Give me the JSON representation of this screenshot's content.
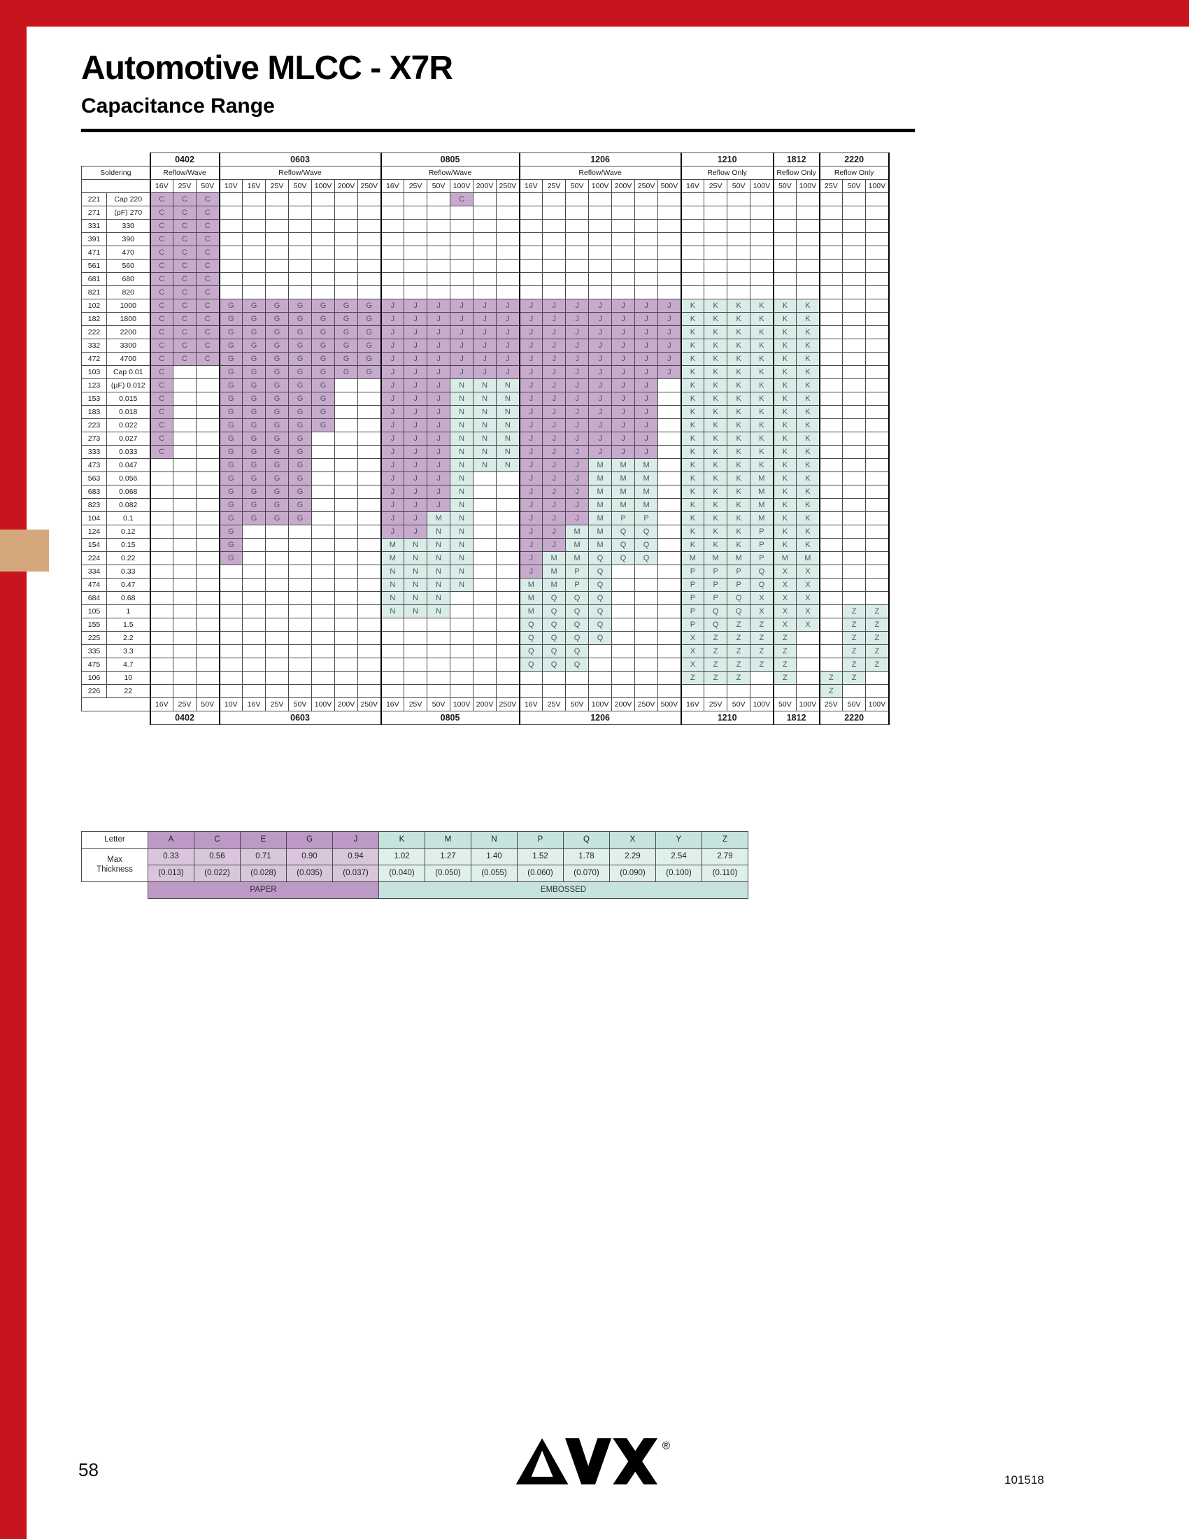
{
  "page": {
    "title": "Automotive MLCC - X7R",
    "subtitle": "Capacitance Range",
    "page_number": "58",
    "doc_code": "101518",
    "brand": "AVX",
    "registered": "®"
  },
  "colors": {
    "accent_red": "#c8151d",
    "tab_tan": "#d4a87c",
    "paper_cell": "#c8aacd",
    "embossed_cell": "#d9ece8",
    "paper_strong": "#bd99c6",
    "paper_light": "#d9c6dc",
    "embossed_strong": "#c6e3dd",
    "embossed_light": "#dff0ec"
  },
  "table": {
    "soldering_label": "Soldering",
    "sizes": [
      {
        "name": "0402",
        "soldering": "Reflow/Wave",
        "voltages": [
          "16V",
          "25V",
          "50V"
        ]
      },
      {
        "name": "0603",
        "soldering": "Reflow/Wave",
        "voltages": [
          "10V",
          "16V",
          "25V",
          "50V",
          "100V",
          "200V",
          "250V"
        ]
      },
      {
        "name": "0805",
        "soldering": "Reflow/Wave",
        "voltages": [
          "16V",
          "25V",
          "50V",
          "100V",
          "200V",
          "250V"
        ]
      },
      {
        "name": "1206",
        "soldering": "Reflow/Wave",
        "voltages": [
          "16V",
          "25V",
          "50V",
          "100V",
          "200V",
          "250V",
          "500V"
        ]
      },
      {
        "name": "1210",
        "soldering": "Reflow Only",
        "voltages": [
          "16V",
          "25V",
          "50V",
          "100V"
        ]
      },
      {
        "name": "1812",
        "soldering": "Reflow Only",
        "voltages": [
          "50V",
          "100V"
        ]
      },
      {
        "name": "2220",
        "soldering": "Reflow Only",
        "voltages": [
          "25V",
          "50V",
          "100V"
        ]
      }
    ],
    "rows": [
      {
        "code": "221",
        "label": "Cap 220",
        "cells": "CCC|-------|---C--|-------|----|--|---"
      },
      {
        "code": "271",
        "label": "(pF) 270",
        "cells": "CCC|-------|------|-------|----|--|---"
      },
      {
        "code": "331",
        "label": "330",
        "cells": "CCC|-------|------|-------|----|--|---"
      },
      {
        "code": "391",
        "label": "390",
        "cells": "CCC|-------|------|-------|----|--|---"
      },
      {
        "code": "471",
        "label": "470",
        "cells": "CCC|-------|------|-------|----|--|---"
      },
      {
        "code": "561",
        "label": "560",
        "cells": "CCC|-------|------|-------|----|--|---"
      },
      {
        "code": "681",
        "label": "680",
        "cells": "CCC|-------|------|-------|----|--|---"
      },
      {
        "code": "821",
        "label": "820",
        "cells": "CCC|-------|------|-------|----|--|---"
      },
      {
        "code": "102",
        "label": "1000",
        "cells": "CCC|GGGGGGG|JJJJJJ|JJJJJJJ|KKKK|KK|---"
      },
      {
        "code": "182",
        "label": "1800",
        "cells": "CCC|GGGGGGG|JJJJJJ|JJJJJJJ|KKKK|KK|---"
      },
      {
        "code": "222",
        "label": "2200",
        "cells": "CCC|GGGGGGG|JJJJJJ|JJJJJJJ|KKKK|KK|---"
      },
      {
        "code": "332",
        "label": "3300",
        "cells": "CCC|GGGGGGG|JJJJJJ|JJJJJJJ|KKKK|KK|---"
      },
      {
        "code": "472",
        "label": "4700",
        "cells": "CCC|GGGGGGG|JJJJJJ|JJJJJJJ|KKKK|KK|---"
      },
      {
        "code": "103",
        "label": "Cap 0.01",
        "cells": "C--|GGGGGGG|JJJJJJ|JJJJJJJ|KKKK|KK|---"
      },
      {
        "code": "123",
        "label": "(µF) 0.012",
        "cells": "C--|GGGGG--|JJJNNN|JJJJJJ-|KKKK|KK|---"
      },
      {
        "code": "153",
        "label": "0.015",
        "cells": "C--|GGGGG--|JJJNNN|JJJJJJ-|KKKK|KK|---"
      },
      {
        "code": "183",
        "label": "0.018",
        "cells": "C--|GGGGG--|JJJNNN|JJJJJJ-|KKKK|KK|---"
      },
      {
        "code": "223",
        "label": "0.022",
        "cells": "C--|GGGGG--|JJJNNN|JJJJJJ-|KKKK|KK|---"
      },
      {
        "code": "273",
        "label": "0.027",
        "cells": "C--|GGGG---|JJJNNN|JJJJJJ-|KKKK|KK|---"
      },
      {
        "code": "333",
        "label": "0.033",
        "cells": "C--|GGGG---|JJJNNN|JJJJJJ-|KKKK|KK|---"
      },
      {
        "code": "473",
        "label": "0.047",
        "cells": "---|GGGG---|JJJNNN|JJJMMM-|KKKK|KK|---"
      },
      {
        "code": "563",
        "label": "0.056",
        "cells": "---|GGGG---|JJJN--|JJJMMM-|KKKM|KK|---"
      },
      {
        "code": "683",
        "label": "0.068",
        "cells": "---|GGGG---|JJJN--|JJJMMM-|KKKM|KK|---"
      },
      {
        "code": "823",
        "label": "0.082",
        "cells": "---|GGGG---|JJJN--|JJJMMM-|KKKM|KK|---"
      },
      {
        "code": "104",
        "label": "0.1",
        "cells": "---|GGGG---|JJMN--|JJJMPP-|KKKM|KK|---"
      },
      {
        "code": "124",
        "label": "0.12",
        "cells": "---|G------|JJNN--|JJMMQQ-|KKKP|KK|---"
      },
      {
        "code": "154",
        "label": "0.15",
        "cells": "---|G------|MNNN--|JJMMQQ-|KKKP|KK|---"
      },
      {
        "code": "224",
        "label": "0.22",
        "cells": "---|G------|MNNN--|JMMQQQ-|MMMP|MM|---"
      },
      {
        "code": "334",
        "label": "0.33",
        "cells": "---|-------|NNNN--|JMPQ---|PPPQ|XX|---"
      },
      {
        "code": "474",
        "label": "0.47",
        "cells": "---|-------|NNNN--|MMPQ---|PPPQ|XX|---"
      },
      {
        "code": "684",
        "label": "0.68",
        "cells": "---|-------|NNN---|MQQQ---|PPQX|XX|---"
      },
      {
        "code": "105",
        "label": "1",
        "cells": "---|-------|NNN---|MQQQ---|PQQX|XX|-ZZ"
      },
      {
        "code": "155",
        "label": "1.5",
        "cells": "---|-------|------|QQQQ---|PQZZ|XX|-ZZ"
      },
      {
        "code": "225",
        "label": "2.2",
        "cells": "---|-------|------|QQQQ---|XZZZ|Z-|-ZZ"
      },
      {
        "code": "335",
        "label": "3.3",
        "cells": "---|-------|------|QQQ----|XZZZ|Z-|-ZZ"
      },
      {
        "code": "475",
        "label": "4.7",
        "cells": "---|-------|------|QQQ----|XZZZ|Z-|-ZZ"
      },
      {
        "code": "106",
        "label": "10",
        "cells": "---|-------|------|-------|ZZZ-|Z-|ZZ-"
      },
      {
        "code": "226",
        "label": "22",
        "cells": "---|-------|------|-------|----|--|Z--"
      }
    ]
  },
  "legend": {
    "letter_label": "Letter",
    "max_label_line1": "Max",
    "max_label_line2": "Thickness",
    "paper_label": "PAPER",
    "embossed_label": "EMBOSSED",
    "columns": [
      {
        "letter": "A",
        "mm": "0.33",
        "inch": "(0.013)",
        "type": "paper"
      },
      {
        "letter": "C",
        "mm": "0.56",
        "inch": "(0.022)",
        "type": "paper"
      },
      {
        "letter": "E",
        "mm": "0.71",
        "inch": "(0.028)",
        "type": "paper"
      },
      {
        "letter": "G",
        "mm": "0.90",
        "inch": "(0.035)",
        "type": "paper"
      },
      {
        "letter": "J",
        "mm": "0.94",
        "inch": "(0.037)",
        "type": "paper"
      },
      {
        "letter": "K",
        "mm": "1.02",
        "inch": "(0.040)",
        "type": "embossed"
      },
      {
        "letter": "M",
        "mm": "1.27",
        "inch": "(0.050)",
        "type": "embossed"
      },
      {
        "letter": "N",
        "mm": "1.40",
        "inch": "(0.055)",
        "type": "embossed"
      },
      {
        "letter": "P",
        "mm": "1.52",
        "inch": "(0.060)",
        "type": "embossed"
      },
      {
        "letter": "Q",
        "mm": "1.78",
        "inch": "(0.070)",
        "type": "embossed"
      },
      {
        "letter": "X",
        "mm": "2.29",
        "inch": "(0.090)",
        "type": "embossed"
      },
      {
        "letter": "Y",
        "mm": "2.54",
        "inch": "(0.100)",
        "type": "embossed"
      },
      {
        "letter": "Z",
        "mm": "2.79",
        "inch": "(0.110)",
        "type": "embossed"
      }
    ]
  }
}
